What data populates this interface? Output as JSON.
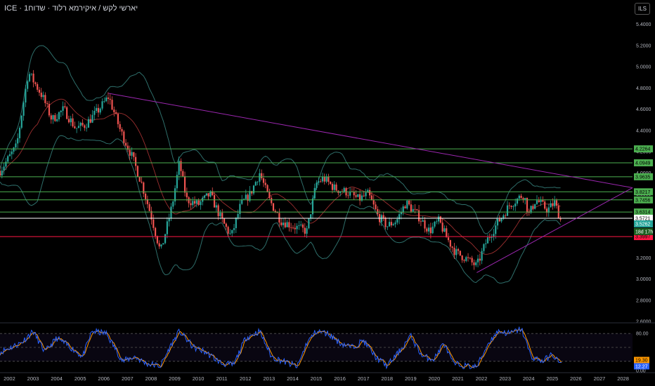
{
  "header": {
    "title": "ICE · יארשי לקש / איקירמא רלוד · שדוח1",
    "currency_button": "ILS"
  },
  "colors": {
    "bull": "#26a69a",
    "bear": "#ef5350",
    "bands": "#2e6e6a",
    "basis": "#9c2f2f",
    "trend": "#9c27b0",
    "resistance": "#4caf50",
    "support": "#ff1744",
    "current": "#ffffff",
    "stoch_k": "#2962ff",
    "stoch_d": "#ff9800"
  },
  "chart_data": [
    {
      "type": "candlestick",
      "title": "ICE · יארשי לקש / איקירמא רלוד · שדוח1",
      "x_range": [
        2001.6,
        2028.4
      ],
      "ylim": [
        2.6,
        5.55
      ],
      "y_ticks": [
        "5.4000",
        "5.2000",
        "5.0000",
        "4.8000",
        "4.6000",
        "4.4000",
        "4.2000",
        "4.0000",
        "3.8000",
        "3.6000",
        "3.4000",
        "3.2000",
        "3.0000",
        "2.8000",
        "2.6000"
      ],
      "x_ticks": [
        "2002",
        "2003",
        "2004",
        "2005",
        "2006",
        "2007",
        "2008",
        "2009",
        "2010",
        "2011",
        "2012",
        "2013",
        "2014",
        "2015",
        "2016",
        "2017",
        "2018",
        "2019",
        "2020",
        "2021",
        "2022",
        "2023",
        "2024",
        "2025",
        "2026",
        "2027",
        "2028"
      ],
      "anchors": [
        [
          2001.6,
          4.02
        ],
        [
          2002.3,
          4.25
        ],
        [
          2002.8,
          4.95
        ],
        [
          2003.4,
          4.72
        ],
        [
          2003.8,
          4.5
        ],
        [
          2004.3,
          4.6
        ],
        [
          2004.8,
          4.42
        ],
        [
          2005.2,
          4.45
        ],
        [
          2005.8,
          4.6
        ],
        [
          2006.2,
          4.72
        ],
        [
          2006.7,
          4.4
        ],
        [
          2007.2,
          4.15
        ],
        [
          2007.6,
          3.9
        ],
        [
          2008.0,
          3.6
        ],
        [
          2008.4,
          3.25
        ],
        [
          2008.9,
          3.7
        ],
        [
          2009.2,
          4.1
        ],
        [
          2009.5,
          3.75
        ],
        [
          2010.0,
          3.7
        ],
        [
          2010.5,
          3.8
        ],
        [
          2011.0,
          3.55
        ],
        [
          2011.4,
          3.4
        ],
        [
          2011.8,
          3.7
        ],
        [
          2012.2,
          3.8
        ],
        [
          2012.6,
          4.0
        ],
        [
          2013.0,
          3.75
        ],
        [
          2013.5,
          3.55
        ],
        [
          2014.0,
          3.5
        ],
        [
          2014.6,
          3.45
        ],
        [
          2015.0,
          3.9
        ],
        [
          2015.3,
          3.95
        ],
        [
          2015.8,
          3.85
        ],
        [
          2016.3,
          3.82
        ],
        [
          2016.8,
          3.75
        ],
        [
          2017.2,
          3.8
        ],
        [
          2017.6,
          3.6
        ],
        [
          2018.0,
          3.5
        ],
        [
          2018.4,
          3.55
        ],
        [
          2018.8,
          3.72
        ],
        [
          2019.3,
          3.6
        ],
        [
          2019.8,
          3.45
        ],
        [
          2020.2,
          3.55
        ],
        [
          2020.5,
          3.4
        ],
        [
          2020.9,
          3.25
        ],
        [
          2021.3,
          3.2
        ],
        [
          2021.8,
          3.12
        ],
        [
          2022.2,
          3.35
        ],
        [
          2022.6,
          3.5
        ],
        [
          2022.9,
          3.6
        ],
        [
          2023.2,
          3.7
        ],
        [
          2023.5,
          3.75
        ],
        [
          2023.8,
          3.8
        ],
        [
          2024.0,
          3.6
        ],
        [
          2024.3,
          3.75
        ],
        [
          2024.8,
          3.65
        ],
        [
          2025.1,
          3.72
        ],
        [
          2025.4,
          3.5262
        ]
      ],
      "horizontal_levels": [
        {
          "value": 4.2264,
          "label": "4.2264",
          "kind": "resistance"
        },
        {
          "value": 4.0949,
          "label": "4.0949",
          "kind": "resistance"
        },
        {
          "value": 3.9635,
          "label": "3.9635",
          "kind": "resistance"
        },
        {
          "value": 3.8217,
          "label": "3.8217",
          "kind": "resistance"
        },
        {
          "value": 3.7456,
          "label": "3.7456",
          "kind": "resistance"
        },
        {
          "value": 3.6314,
          "label": "3.6314",
          "kind": "resistance"
        },
        {
          "value": 3.5721,
          "label": "3.5721",
          "kind": "current"
        },
        {
          "value": 3.3997,
          "label": "3.3997",
          "kind": "support"
        }
      ],
      "trendlines": [
        {
          "from": [
            2006.2,
            4.75
          ],
          "to": [
            2028.4,
            3.86
          ]
        },
        {
          "from": [
            2021.8,
            3.06
          ],
          "to": [
            2028.4,
            3.86
          ]
        }
      ],
      "last_price": {
        "value": 3.5262,
        "label": "3.5262",
        "countdown": "18d 17h"
      }
    },
    {
      "type": "line",
      "name": "stochastic",
      "ylim": [
        0,
        100
      ],
      "y_ticks": [
        "80.00",
        "20.00",
        "0.00"
      ],
      "guides": [
        80,
        50,
        20
      ],
      "readouts": {
        "d": "19.30",
        "k": "12.27"
      },
      "anchors_k": [
        [
          2001.6,
          40
        ],
        [
          2002.5,
          60
        ],
        [
          2003.0,
          85
        ],
        [
          2003.5,
          40
        ],
        [
          2004.0,
          70
        ],
        [
          2004.6,
          50
        ],
        [
          2005.1,
          30
        ],
        [
          2005.5,
          85
        ],
        [
          2006.1,
          80
        ],
        [
          2006.8,
          20
        ],
        [
          2007.3,
          30
        ],
        [
          2007.8,
          15
        ],
        [
          2008.4,
          10
        ],
        [
          2008.9,
          60
        ],
        [
          2009.2,
          85
        ],
        [
          2009.8,
          50
        ],
        [
          2010.3,
          40
        ],
        [
          2011.0,
          15
        ],
        [
          2011.5,
          12
        ],
        [
          2012.0,
          70
        ],
        [
          2012.6,
          85
        ],
        [
          2013.1,
          30
        ],
        [
          2013.6,
          20
        ],
        [
          2014.2,
          8
        ],
        [
          2014.6,
          60
        ],
        [
          2015.0,
          85
        ],
        [
          2015.5,
          80
        ],
        [
          2016.0,
          60
        ],
        [
          2016.5,
          50
        ],
        [
          2017.0,
          65
        ],
        [
          2017.5,
          30
        ],
        [
          2018.0,
          10
        ],
        [
          2018.5,
          40
        ],
        [
          2019.0,
          75
        ],
        [
          2019.5,
          30
        ],
        [
          2020.0,
          25
        ],
        [
          2020.4,
          60
        ],
        [
          2020.8,
          15
        ],
        [
          2021.3,
          10
        ],
        [
          2021.8,
          8
        ],
        [
          2022.3,
          60
        ],
        [
          2022.7,
          85
        ],
        [
          2023.2,
          80
        ],
        [
          2023.7,
          90
        ],
        [
          2024.1,
          30
        ],
        [
          2024.6,
          20
        ],
        [
          2025.0,
          35
        ],
        [
          2025.4,
          12.27
        ]
      ]
    }
  ]
}
